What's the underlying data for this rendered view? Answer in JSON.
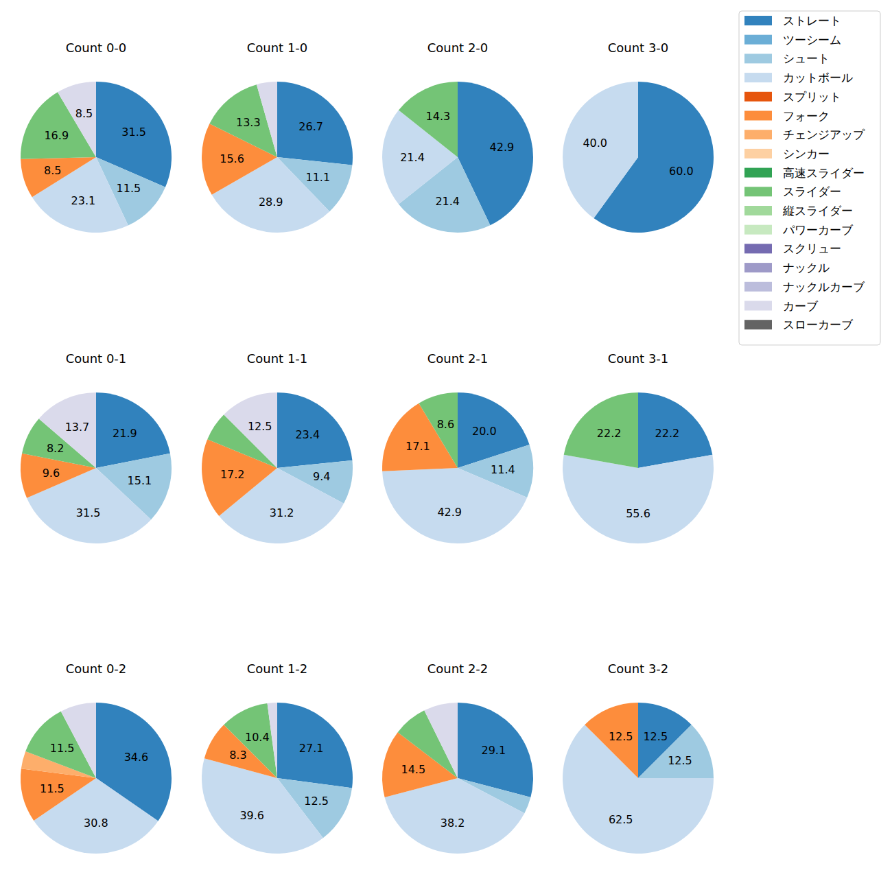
{
  "chart_data": [
    {
      "type": "pie",
      "title": "Count 0-0",
      "data_labels": true,
      "categories": [
        "ストレート",
        "シュート",
        "カットボール",
        "フォーク",
        "スライダー",
        "カーブ"
      ],
      "values": [
        31.5,
        11.5,
        23.1,
        8.5,
        16.9,
        8.5
      ],
      "value_labels": [
        "31.5",
        "11.5",
        "23.1",
        "8.5",
        "16.9",
        "8.5"
      ],
      "colors": [
        "#3182bd",
        "#9ecae1",
        "#c6dbef",
        "#fd8d3c",
        "#74c476",
        "#dadaeb"
      ]
    },
    {
      "type": "pie",
      "title": "Count 1-0",
      "data_labels": true,
      "categories": [
        "ストレート",
        "シュート",
        "カットボール",
        "フォーク",
        "スライダー",
        "カーブ"
      ],
      "values": [
        26.7,
        11.1,
        28.9,
        15.6,
        13.3,
        4.4
      ],
      "value_labels": [
        "26.7",
        "11.1",
        "28.9",
        "15.6",
        "13.3",
        null
      ],
      "colors": [
        "#3182bd",
        "#9ecae1",
        "#c6dbef",
        "#fd8d3c",
        "#74c476",
        "#dadaeb"
      ]
    },
    {
      "type": "pie",
      "title": "Count 2-0",
      "data_labels": true,
      "categories": [
        "ストレート",
        "シュート",
        "カットボール",
        "スライダー"
      ],
      "values": [
        42.9,
        21.4,
        21.4,
        14.3
      ],
      "value_labels": [
        "42.9",
        "21.4",
        "21.4",
        "14.3"
      ],
      "colors": [
        "#3182bd",
        "#9ecae1",
        "#c6dbef",
        "#74c476"
      ]
    },
    {
      "type": "pie",
      "title": "Count 3-0",
      "data_labels": true,
      "categories": [
        "ストレート",
        "カットボール"
      ],
      "values": [
        60,
        40
      ],
      "value_labels": [
        "60.0",
        "40.0"
      ],
      "colors": [
        "#3182bd",
        "#c6dbef"
      ]
    },
    {
      "type": "pie",
      "title": "Count 0-1",
      "data_labels": true,
      "categories": [
        "ストレート",
        "シュート",
        "カットボール",
        "フォーク",
        "スライダー",
        "カーブ"
      ],
      "values": [
        21.9,
        15.1,
        31.5,
        9.6,
        8.2,
        13.7
      ],
      "value_labels": [
        "21.9",
        "15.1",
        "31.5",
        "9.6",
        "8.2",
        "13.7"
      ],
      "colors": [
        "#3182bd",
        "#9ecae1",
        "#c6dbef",
        "#fd8d3c",
        "#74c476",
        "#dadaeb"
      ]
    },
    {
      "type": "pie",
      "title": "Count 1-1",
      "data_labels": true,
      "categories": [
        "ストレート",
        "シュート",
        "カットボール",
        "フォーク",
        "スライダー",
        "カーブ"
      ],
      "values": [
        23.4,
        9.4,
        31.2,
        17.2,
        6.3,
        12.5
      ],
      "value_labels": [
        "23.4",
        "9.4",
        "31.2",
        "17.2",
        null,
        "12.5"
      ],
      "colors": [
        "#3182bd",
        "#9ecae1",
        "#c6dbef",
        "#fd8d3c",
        "#74c476",
        "#dadaeb"
      ]
    },
    {
      "type": "pie",
      "title": "Count 2-1",
      "data_labels": true,
      "categories": [
        "ストレート",
        "シュート",
        "カットボール",
        "フォーク",
        "スライダー"
      ],
      "values": [
        20.0,
        11.4,
        42.9,
        17.1,
        8.6
      ],
      "value_labels": [
        "20.0",
        "11.4",
        "42.9",
        "17.1",
        "8.6"
      ],
      "colors": [
        "#3182bd",
        "#9ecae1",
        "#c6dbef",
        "#fd8d3c",
        "#74c476"
      ]
    },
    {
      "type": "pie",
      "title": "Count 3-1",
      "data_labels": true,
      "categories": [
        "ストレート",
        "カットボール",
        "スライダー"
      ],
      "values": [
        22.2,
        55.6,
        22.2
      ],
      "value_labels": [
        "22.2",
        "55.6",
        "22.2"
      ],
      "colors": [
        "#3182bd",
        "#c6dbef",
        "#74c476"
      ]
    },
    {
      "type": "pie",
      "title": "Count 0-2",
      "data_labels": true,
      "categories": [
        "ストレート",
        "カットボール",
        "フォーク",
        "チェンジアップ",
        "スライダー",
        "カーブ"
      ],
      "values": [
        34.6,
        30.8,
        11.5,
        3.8,
        11.5,
        7.7
      ],
      "value_labels": [
        "34.6",
        "30.8",
        "11.5",
        null,
        "11.5",
        null
      ],
      "colors": [
        "#3182bd",
        "#c6dbef",
        "#fd8d3c",
        "#fdae6b",
        "#74c476",
        "#dadaeb"
      ]
    },
    {
      "type": "pie",
      "title": "Count 1-2",
      "data_labels": true,
      "categories": [
        "ストレート",
        "シュート",
        "カットボール",
        "フォーク",
        "スライダー",
        "カーブ"
      ],
      "values": [
        27.1,
        12.5,
        39.6,
        8.3,
        10.4,
        2.1
      ],
      "value_labels": [
        "27.1",
        "12.5",
        "39.6",
        "8.3",
        "10.4",
        null
      ],
      "colors": [
        "#3182bd",
        "#9ecae1",
        "#c6dbef",
        "#fd8d3c",
        "#74c476",
        "#dadaeb"
      ]
    },
    {
      "type": "pie",
      "title": "Count 2-2",
      "data_labels": true,
      "categories": [
        "ストレート",
        "シュート",
        "カットボール",
        "フォーク",
        "スライダー",
        "カーブ"
      ],
      "values": [
        29.1,
        3.6,
        38.2,
        14.5,
        7.3,
        7.3
      ],
      "value_labels": [
        "29.1",
        null,
        "38.2",
        "14.5",
        null,
        null
      ],
      "colors": [
        "#3182bd",
        "#9ecae1",
        "#c6dbef",
        "#fd8d3c",
        "#74c476",
        "#dadaeb"
      ]
    },
    {
      "type": "pie",
      "title": "Count 3-2",
      "data_labels": true,
      "categories": [
        "ストレート",
        "シュート",
        "カットボール",
        "フォーク"
      ],
      "values": [
        12.5,
        12.5,
        62.5,
        12.5
      ],
      "value_labels": [
        "12.5",
        "12.5",
        "62.5",
        "12.5"
      ],
      "colors": [
        "#3182bd",
        "#9ecae1",
        "#c6dbef",
        "#fd8d3c"
      ]
    }
  ],
  "legend_entries": [
    {
      "name": "ストレート",
      "color": "#3182bd"
    },
    {
      "name": "ツーシーム",
      "color": "#6baed6"
    },
    {
      "name": "シュート",
      "color": "#9ecae1"
    },
    {
      "name": "カットボール",
      "color": "#c6dbef"
    },
    {
      "name": "スプリット",
      "color": "#e6550d"
    },
    {
      "name": "フォーク",
      "color": "#fd8d3c"
    },
    {
      "name": "チェンジアップ",
      "color": "#fdae6b"
    },
    {
      "name": "シンカー",
      "color": "#fdd0a2"
    },
    {
      "name": "高速スライダー",
      "color": "#31a354"
    },
    {
      "name": "スライダー",
      "color": "#74c476"
    },
    {
      "name": "縦スライダー",
      "color": "#a1d99b"
    },
    {
      "name": "パワーカーブ",
      "color": "#c7e9c0"
    },
    {
      "name": "スクリュー",
      "color": "#756bb1"
    },
    {
      "name": "ナックル",
      "color": "#9e9ac8"
    },
    {
      "name": "ナックルカーブ",
      "color": "#bcbddc"
    },
    {
      "name": "カーブ",
      "color": "#dadaeb"
    },
    {
      "name": "スローカーブ",
      "color": "#636363"
    }
  ]
}
